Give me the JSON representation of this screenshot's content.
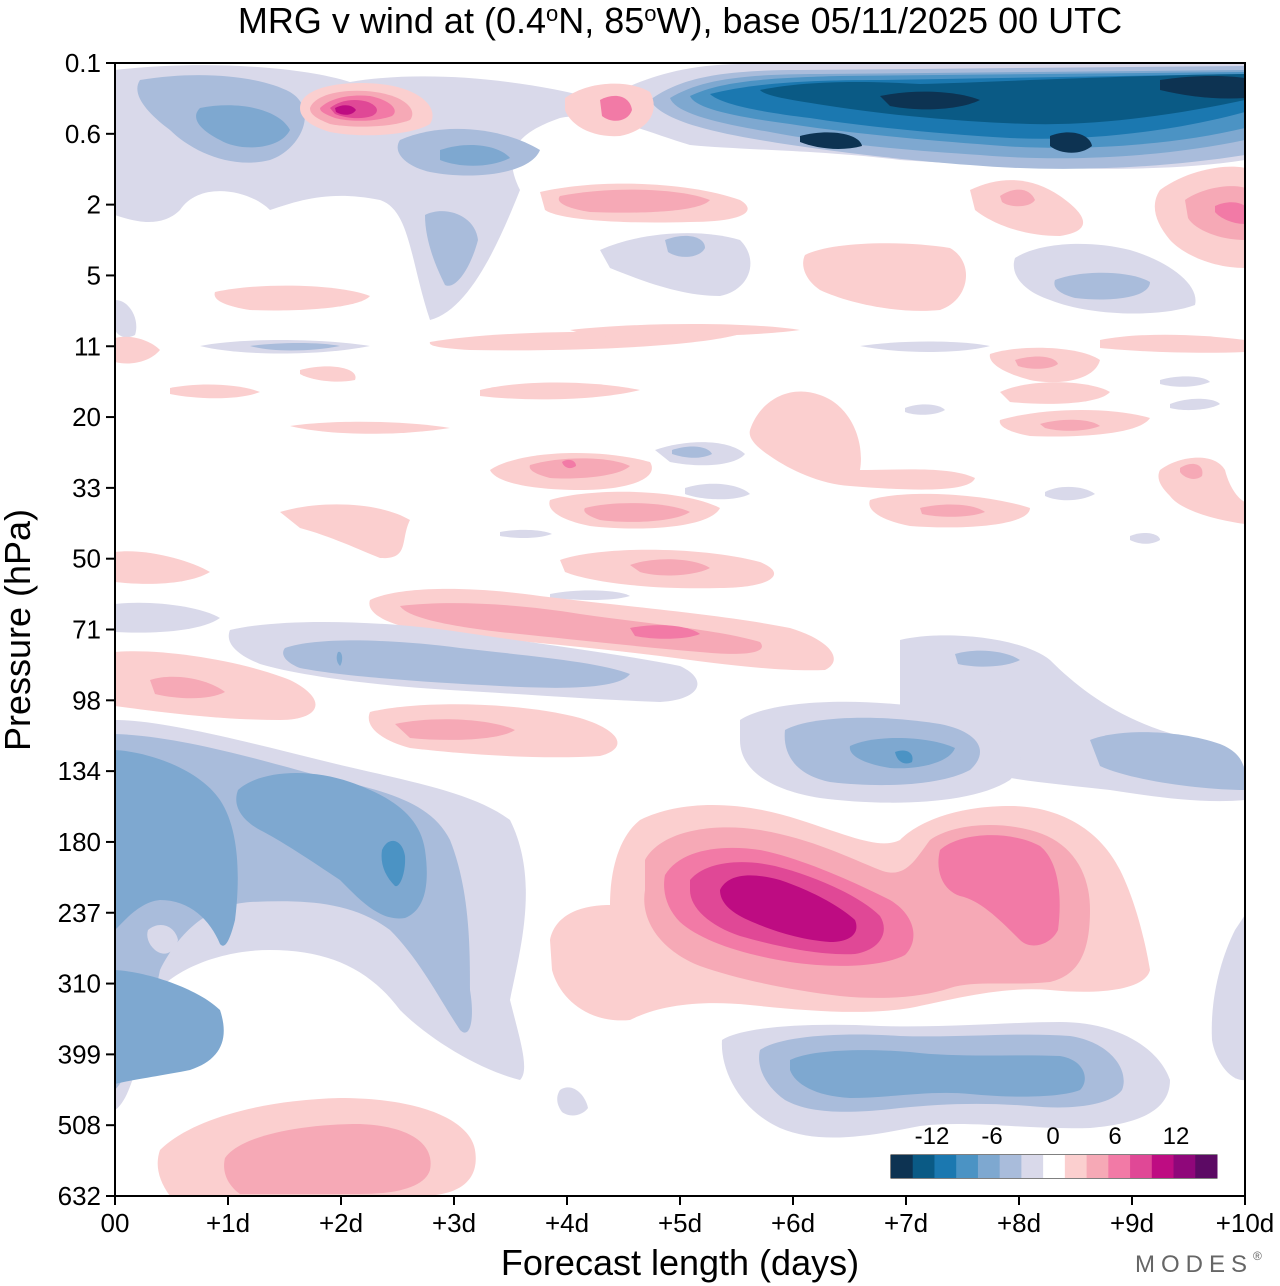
{
  "chart_data": {
    "type": "heatmap",
    "title": "MRG v wind at (0.4°N, 85°W),  base 05/11/2025  00 UTC",
    "title_parts": {
      "lead": "MRG v wind at (0.4",
      "deg1": "o",
      "mid": "N, 85",
      "deg2": "o",
      "tail": "W),  base 05/11/2025  00 UTC"
    },
    "xlabel": "Forecast length (days)",
    "ylabel": "Pressure (hPa)",
    "x_ticks": [
      "00",
      "+1d",
      "+2d",
      "+3d",
      "+4d",
      "+5d",
      "+6d",
      "+7d",
      "+8d",
      "+9d",
      "+10d"
    ],
    "xlim": [
      0,
      10
    ],
    "y_ticks": [
      "0.1",
      "0.6",
      "2",
      "5",
      "11",
      "20",
      "33",
      "50",
      "71",
      "98",
      "134",
      "180",
      "237",
      "310",
      "399",
      "508",
      "632"
    ],
    "colorbar": {
      "tick_labels": [
        "-12",
        "-6",
        "0",
        "6",
        "12"
      ],
      "colors": [
        "#0d3352",
        "#0a5a85",
        "#1b78b0",
        "#4b93c4",
        "#7ea8d0",
        "#a9bcdb",
        "#d9d9ea",
        "#ffffff",
        "#fbcfcf",
        "#f6a9b6",
        "#f27aa6",
        "#e04896",
        "#be0c82",
        "#8f077a",
        "#5c0a64"
      ]
    },
    "features": [
      {
        "sign": "negative",
        "level": -14,
        "x": 7.6,
        "y": 1.0,
        "rx": 1.5,
        "ry": 0.45
      },
      {
        "sign": "positive",
        "level": 12,
        "x": 6.0,
        "y": 12.0,
        "rx": 0.9,
        "ry": 0.25
      },
      {
        "sign": "positive",
        "level": 8,
        "x": 8.0,
        "y": 11.6,
        "rx": 0.6,
        "ry": 0.5
      },
      {
        "sign": "negative",
        "level": -6,
        "x": 7.0,
        "y": 14.4,
        "rx": 1.7,
        "ry": 0.4
      },
      {
        "sign": "negative",
        "level": -6,
        "x": 1.5,
        "y": 11.3,
        "rx": 1.4,
        "ry": 1.2
      },
      {
        "sign": "negative",
        "level": -6,
        "x": 0.5,
        "y": 13.8,
        "rx": 0.8,
        "ry": 0.9
      },
      {
        "sign": "positive",
        "level": 6,
        "x": 2.0,
        "y": 15.6,
        "rx": 1.6,
        "ry": 0.55
      },
      {
        "sign": "positive",
        "level": 12,
        "x": 2.0,
        "y": 0.6,
        "rx": 0.5,
        "ry": 0.35
      },
      {
        "sign": "positive",
        "level": 4,
        "x": 3.2,
        "y": 8.0,
        "rx": 3.2,
        "ry": 0.3
      },
      {
        "sign": "negative",
        "level": -4,
        "x": 3.5,
        "y": 0.8,
        "rx": 0.6,
        "ry": 0.4
      }
    ]
  },
  "branding": {
    "watermark": "MODES",
    "registered": "®"
  }
}
